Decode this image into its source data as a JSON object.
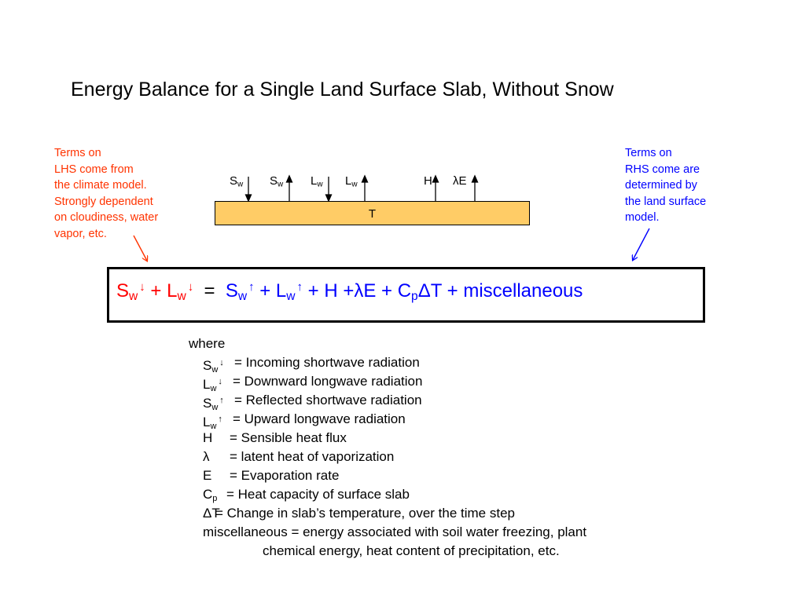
{
  "title": "Energy Balance for a Single Land Surface Slab, Without Snow",
  "note_left": "Terms on\nLHS come from\nthe climate model.\nStrongly dependent\non cloudiness, water\nvapor, etc.",
  "note_right": "Terms on\nRHS come are\ndetermined by\nthe land surface\nmodel.",
  "slab_label": "T",
  "fluxes": {
    "sw_down": {
      "base": "S",
      "sub": "w"
    },
    "sw_up": {
      "base": "S",
      "sub": "w"
    },
    "lw_down": {
      "base": "L",
      "sub": "w"
    },
    "lw_up": {
      "base": "L",
      "sub": "w"
    },
    "h": {
      "base": "H"
    },
    "le": {
      "base": "λE"
    }
  },
  "equation": {
    "lhs": {
      "t1_base": "S",
      "t1_sub": "w",
      "t1_arrow": "↓",
      "plus": " + ",
      "t2_base": "L",
      "t2_sub": "w",
      "t2_arrow": "↓"
    },
    "equals": "  =  ",
    "rhs": {
      "t1_base": "S",
      "t1_sub": "w",
      "t1_arrow": "↑",
      "plus1": " + ",
      "t2_base": "L",
      "t2_sub": "w",
      "t2_arrow": "↑",
      "rest1": " + H +λE + C",
      "cp_sub": "p",
      "rest2": "ΔT + miscellaneous"
    }
  },
  "legend": {
    "where": "where",
    "items": [
      {
        "base": "S",
        "sub": "w",
        "arrow": "↓",
        "def": "= Incoming shortwave radiation"
      },
      {
        "base": "L",
        "sub": "w",
        "arrow": "↓",
        "def": "= Downward longwave radiation"
      },
      {
        "base": "S",
        "sub": "w",
        "arrow": "↑",
        "def": "= Reflected shortwave radiation"
      },
      {
        "base": "L",
        "sub": "w",
        "arrow": "↑",
        "def": "= Upward longwave radiation"
      },
      {
        "base": "H",
        "sub": "",
        "arrow": "",
        "def": "= Sensible heat flux"
      },
      {
        "base": "λ",
        "sub": "",
        "arrow": "",
        "def": "= latent heat of vaporization"
      },
      {
        "base": "E",
        "sub": "",
        "arrow": "",
        "def": "= Evaporation rate"
      },
      {
        "base": "C",
        "sub": "p",
        "arrow": "",
        "def": "= Heat capacity of surface slab"
      },
      {
        "base": "ΔT",
        "sub": "",
        "arrow": "",
        "def": "= Change in slab’s temperature, over the time step"
      }
    ],
    "misc_line1": "miscellaneous = energy associated with soil water freezing, plant",
    "misc_line2": "chemical energy, heat content of precipitation, etc."
  }
}
